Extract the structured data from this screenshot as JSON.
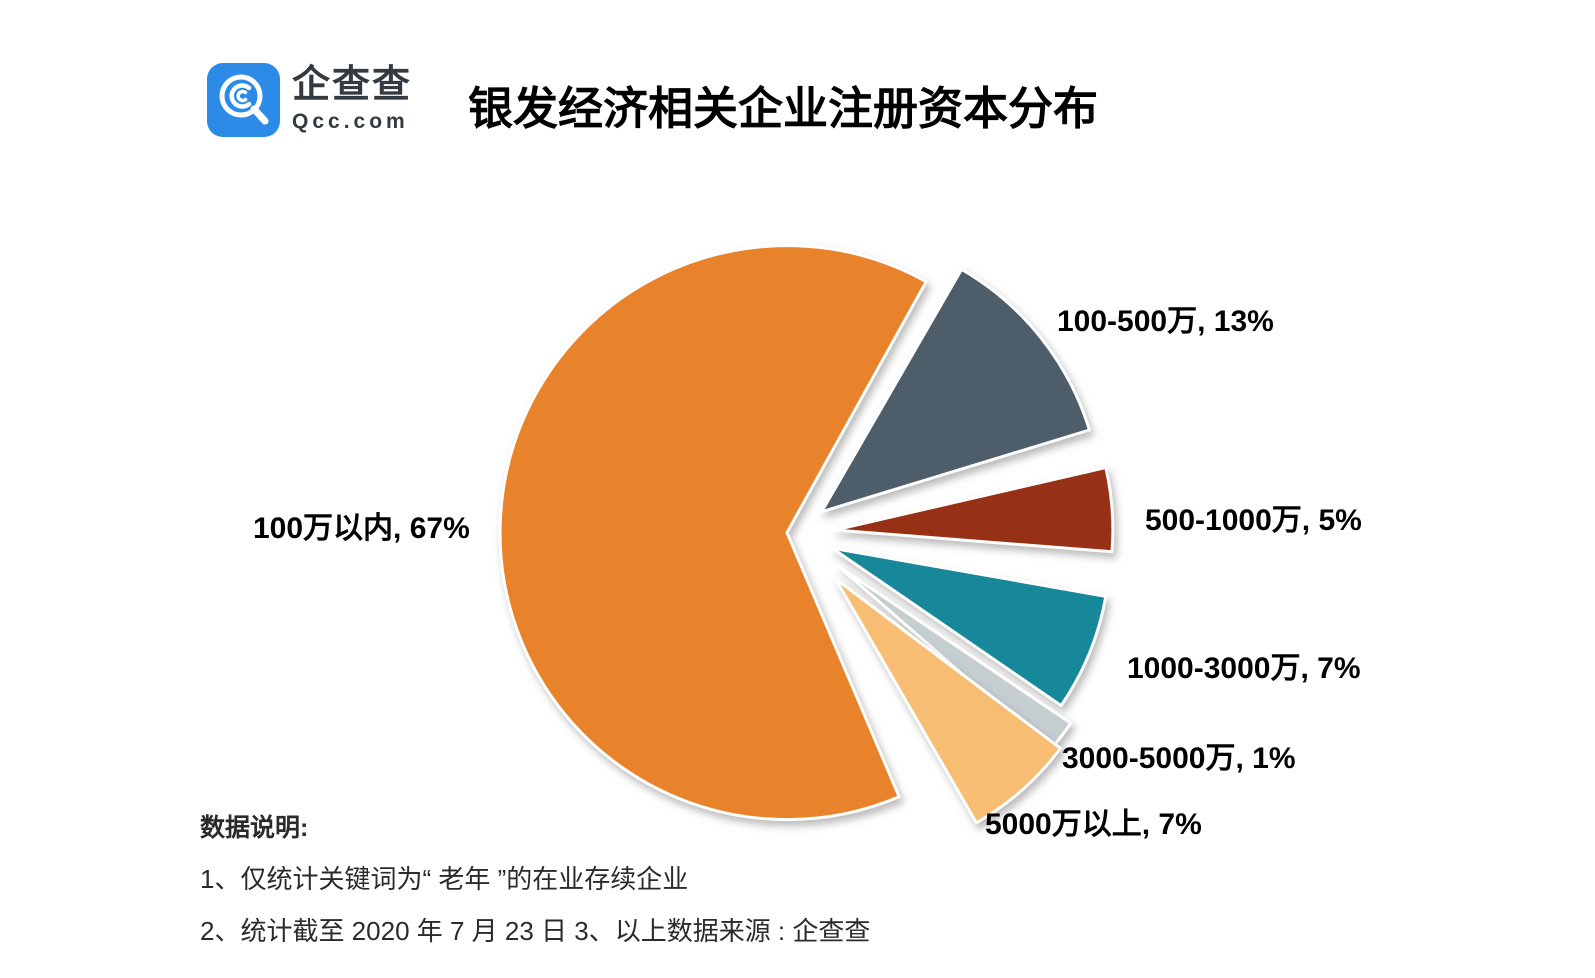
{
  "brand": {
    "name_cn": "企查查",
    "name_en": "Qcc.com",
    "logo_color": "#2c8be7"
  },
  "title": "银发经济相关企业注册资本分布",
  "chart_data": {
    "type": "pie",
    "title": "银发经济相关企业注册资本分布",
    "unit": "percent",
    "legend_position": "none",
    "label_format": "{name}, {value}%",
    "slices": [
      {
        "name": "100万以内",
        "value": 67,
        "color": "#E8832C"
      },
      {
        "name": "100-500万",
        "value": 13,
        "color": "#4D5E6A"
      },
      {
        "name": "500-1000万",
        "value": 5,
        "color": "#963116"
      },
      {
        "name": "1000-3000万",
        "value": 7,
        "color": "#17879A"
      },
      {
        "name": "3000-5000万",
        "value": 1,
        "color": "#C5CED1"
      },
      {
        "name": "5000万以上",
        "value": 7,
        "color": "#F7BD72"
      }
    ]
  },
  "notes": {
    "heading": "数据说明:",
    "line1": "1、仅统计关键词为“ 老年 ”的在业存续企业",
    "line2": "2、统计截至 2020 年 7 月 23 日   3、以上数据来源 : 企查查"
  }
}
